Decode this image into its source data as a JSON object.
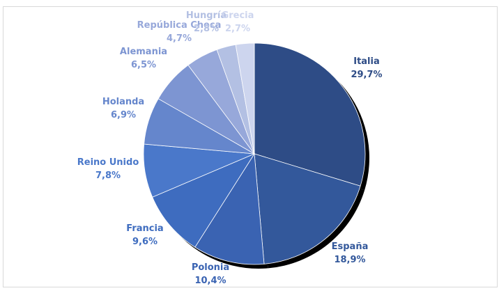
{
  "chart_data": {
    "type": "pie",
    "title": "",
    "categories": [
      "Italia",
      "España",
      "Polonia",
      "Francia",
      "Reino Unido",
      "Holanda",
      "Alemania",
      "República Checa",
      "Hungría",
      "Grecia"
    ],
    "values": [
      29.7,
      18.9,
      10.4,
      9.6,
      7.8,
      6.9,
      6.5,
      4.7,
      2.8,
      2.7
    ],
    "value_labels": [
      "29,7%",
      "18,9%",
      "10,4%",
      "9,6%",
      "7,8%",
      "6,9%",
      "6,5%",
      "4,7%",
      "2,8%",
      "2,7%"
    ],
    "colors": [
      "#2e4c86",
      "#33589b",
      "#3a63b2",
      "#3e6cbf",
      "#4a78ca",
      "#6586cc",
      "#7d95d2",
      "#97a8da",
      "#b3c0e3",
      "#cdd5ee"
    ],
    "label_colors": [
      "#2e4c86",
      "#33589b",
      "#3a63b2",
      "#3e6cbf",
      "#4a78ca",
      "#6586cc",
      "#7d95d2",
      "#97a8da",
      "#b3c0e3",
      "#cdd5ee"
    ],
    "shadow": true,
    "legend": "none",
    "data_labels": "outside"
  }
}
